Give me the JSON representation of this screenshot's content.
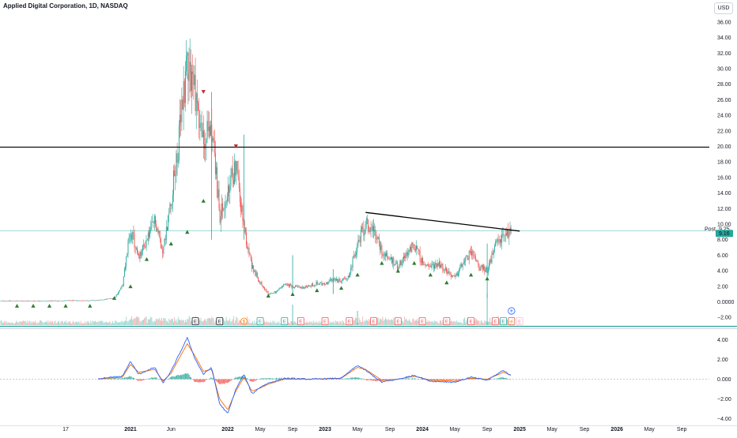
{
  "header": {
    "title": "Applied Digital Corporation, 1D, NASDAQ",
    "currency": "USD"
  },
  "price_tags": {
    "post_label": "Post",
    "post_value": "9.25",
    "last_value": "9.16"
  },
  "colors": {
    "up": "#26a69a",
    "down": "#ef5350",
    "macd": "#2962ff",
    "signal": "#ff6d00",
    "hline": "#000000",
    "lastline": "#26a69a",
    "axis_text": "#131722"
  },
  "chart_data": [
    {
      "type": "candlestick",
      "title": "",
      "ylim": [
        -3,
        37
      ],
      "y_ticks": [
        "36.00",
        "34.00",
        "32.00",
        "30.00",
        "28.00",
        "26.00",
        "24.00",
        "22.00",
        "20.00",
        "18.00",
        "16.00",
        "14.00",
        "12.00",
        "10.00",
        "8.00",
        "6.00",
        "4.00",
        "2.00",
        "0.0000",
        "−2.00"
      ],
      "horizontal_line": 19.9,
      "trend_line": {
        "start": [
          "2023-06",
          11.5
        ],
        "end": [
          "2025-01",
          9.1
        ]
      },
      "last_price": 9.16,
      "post_price": 9.25,
      "close_series": [
        [
          "2019-09",
          0.12
        ],
        [
          "2019-11",
          0.12
        ],
        [
          "2020-01",
          0.12
        ],
        [
          "2020-03",
          0.12
        ],
        [
          "2020-05",
          0.15
        ],
        [
          "2020-07",
          0.16
        ],
        [
          "2020-09",
          0.18
        ],
        [
          "2020-11",
          0.5
        ],
        [
          "2020-12",
          2.0
        ],
        [
          "2021-01",
          9.5
        ],
        [
          "2021-02",
          5.5
        ],
        [
          "2021-03",
          8.0
        ],
        [
          "2021-04",
          10.5
        ],
        [
          "2021-05",
          6.5
        ],
        [
          "2021-06",
          13.0
        ],
        [
          "2021-07",
          21.0
        ],
        [
          "2021-08",
          32.0
        ],
        [
          "2021-09",
          27.0
        ],
        [
          "2021-10",
          20.0
        ],
        [
          "2021-11",
          23.0
        ],
        [
          "2021-12",
          11.0
        ],
        [
          "2022-01",
          13.5
        ],
        [
          "2022-02",
          18.0
        ],
        [
          "2022-03",
          9.0
        ],
        [
          "2022-04",
          4.5
        ],
        [
          "2022-05",
          2.5
        ],
        [
          "2022-06",
          1.0
        ],
        [
          "2022-07",
          1.3
        ],
        [
          "2022-08",
          2.2
        ],
        [
          "2022-09",
          2.0
        ],
        [
          "2022-10",
          1.8
        ],
        [
          "2022-11",
          2.0
        ],
        [
          "2022-12",
          2.4
        ],
        [
          "2023-01",
          2.2
        ],
        [
          "2023-02",
          3.0
        ],
        [
          "2023-03",
          2.6
        ],
        [
          "2023-04",
          3.5
        ],
        [
          "2023-05",
          7.5
        ],
        [
          "2023-06",
          10.0
        ],
        [
          "2023-07",
          9.5
        ],
        [
          "2023-08",
          6.5
        ],
        [
          "2023-09",
          5.5
        ],
        [
          "2023-10",
          4.5
        ],
        [
          "2023-11",
          6.0
        ],
        [
          "2023-12",
          7.5
        ],
        [
          "2024-01",
          5.0
        ],
        [
          "2024-02",
          4.5
        ],
        [
          "2024-03",
          5.0
        ],
        [
          "2024-04",
          4.0
        ],
        [
          "2024-05",
          3.0
        ],
        [
          "2024-06",
          5.0
        ],
        [
          "2024-07",
          6.5
        ],
        [
          "2024-08",
          4.5
        ],
        [
          "2024-09",
          4.0
        ],
        [
          "2024-10",
          7.0
        ],
        [
          "2024-11",
          8.5
        ],
        [
          "2024-12",
          9.16
        ]
      ],
      "up_markers": [
        [
          "2019-11",
          -0.5
        ],
        [
          "2020-01",
          -0.5
        ],
        [
          "2020-03",
          -0.5
        ],
        [
          "2020-05",
          -0.5
        ],
        [
          "2020-08",
          -0.5
        ],
        [
          "2020-11",
          0.5
        ],
        [
          "2021-01",
          2.0
        ],
        [
          "2021-03",
          5.5
        ],
        [
          "2021-06",
          7.5
        ],
        [
          "2021-08",
          9.0
        ],
        [
          "2021-10",
          13.0
        ],
        [
          "2022-06",
          0.8
        ],
        [
          "2022-09",
          1.0
        ],
        [
          "2022-12",
          1.5
        ],
        [
          "2023-03",
          1.8
        ],
        [
          "2023-05",
          3.5
        ],
        [
          "2023-08",
          5.0
        ],
        [
          "2023-10",
          4.0
        ],
        [
          "2023-12",
          5.0
        ],
        [
          "2024-02",
          3.5
        ],
        [
          "2024-04",
          2.5
        ],
        [
          "2024-07",
          3.5
        ],
        [
          "2024-09",
          3.0
        ]
      ],
      "down_markers": [
        [
          "2021-10",
          27.0
        ],
        [
          "2022-02",
          20.0
        ]
      ],
      "events": [
        {
          "date": "2021-09",
          "label": "E",
          "style": "dark"
        },
        {
          "date": "2021-12",
          "label": "E",
          "style": "dark"
        },
        {
          "date": "2022-03",
          "label": "$",
          "style": "orange"
        },
        {
          "date": "2022-05",
          "label": "E",
          "style": "green"
        },
        {
          "date": "2022-08",
          "label": "E",
          "style": "green"
        },
        {
          "date": "2022-10",
          "label": "E",
          "style": "red"
        },
        {
          "date": "2023-01",
          "label": "E",
          "style": "red"
        },
        {
          "date": "2023-04",
          "label": "E",
          "style": "red"
        },
        {
          "date": "2023-07",
          "label": "E",
          "style": "red"
        },
        {
          "date": "2023-10",
          "label": "E",
          "style": "red"
        },
        {
          "date": "2024-01",
          "label": "E",
          "style": "red"
        },
        {
          "date": "2024-04",
          "label": "E",
          "style": "red"
        },
        {
          "date": "2024-07",
          "label": "E",
          "style": "red"
        },
        {
          "date": "2024-10",
          "label": "E",
          "style": "red"
        },
        {
          "date": "2024-11",
          "label": "E",
          "style": "green"
        },
        {
          "date": "2024-12",
          "label": "⚡",
          "style": "red"
        },
        {
          "date": "2025-01",
          "label": "E",
          "style": "pink"
        }
      ]
    },
    {
      "type": "macd",
      "ylim": [
        -4.6,
        5.0
      ],
      "y_ticks": [
        "4.00",
        "2.00",
        "0.000",
        "−2.00",
        "−4.00"
      ],
      "macd_series": [
        [
          "2020-09",
          0.05
        ],
        [
          "2020-12",
          0.3
        ],
        [
          "2021-01",
          1.8
        ],
        [
          "2021-02",
          0.5
        ],
        [
          "2021-04",
          1.2
        ],
        [
          "2021-05",
          -0.4
        ],
        [
          "2021-06",
          0.8
        ],
        [
          "2021-08",
          4.2
        ],
        [
          "2021-09",
          2.0
        ],
        [
          "2021-10",
          0.5
        ],
        [
          "2021-11",
          1.2
        ],
        [
          "2021-12",
          -2.5
        ],
        [
          "2022-01",
          -3.5
        ],
        [
          "2022-02",
          -1.0
        ],
        [
          "2022-03",
          0.5
        ],
        [
          "2022-04",
          -1.5
        ],
        [
          "2022-05",
          -0.8
        ],
        [
          "2022-06",
          -0.4
        ],
        [
          "2022-08",
          0.1
        ],
        [
          "2022-11",
          0.0
        ],
        [
          "2023-03",
          0.1
        ],
        [
          "2023-05",
          1.4
        ],
        [
          "2023-06",
          0.9
        ],
        [
          "2023-08",
          -0.3
        ],
        [
          "2023-10",
          0.0
        ],
        [
          "2023-12",
          0.4
        ],
        [
          "2024-02",
          -0.2
        ],
        [
          "2024-05",
          -0.3
        ],
        [
          "2024-07",
          0.2
        ],
        [
          "2024-09",
          -0.1
        ],
        [
          "2024-11",
          0.9
        ],
        [
          "2024-12",
          0.3
        ]
      ],
      "signal_series": [
        [
          "2020-09",
          0.04
        ],
        [
          "2020-12",
          0.2
        ],
        [
          "2021-01",
          1.5
        ],
        [
          "2021-02",
          0.7
        ],
        [
          "2021-04",
          1.0
        ],
        [
          "2021-05",
          -0.2
        ],
        [
          "2021-06",
          0.6
        ],
        [
          "2021-08",
          3.6
        ],
        [
          "2021-09",
          2.3
        ],
        [
          "2021-10",
          0.8
        ],
        [
          "2021-11",
          1.0
        ],
        [
          "2021-12",
          -2.0
        ],
        [
          "2022-01",
          -3.1
        ],
        [
          "2022-02",
          -1.2
        ],
        [
          "2022-03",
          0.2
        ],
        [
          "2022-04",
          -1.2
        ],
        [
          "2022-05",
          -0.9
        ],
        [
          "2022-06",
          -0.5
        ],
        [
          "2022-08",
          0.0
        ],
        [
          "2022-11",
          0.0
        ],
        [
          "2023-03",
          0.1
        ],
        [
          "2023-05",
          1.2
        ],
        [
          "2023-06",
          1.0
        ],
        [
          "2023-08",
          -0.1
        ],
        [
          "2023-10",
          0.0
        ],
        [
          "2023-12",
          0.3
        ],
        [
          "2024-02",
          -0.1
        ],
        [
          "2024-05",
          -0.2
        ],
        [
          "2024-07",
          0.1
        ],
        [
          "2024-09",
          0.0
        ],
        [
          "2024-11",
          0.7
        ],
        [
          "2024-12",
          0.4
        ]
      ]
    }
  ],
  "x_axis": {
    "ticks": [
      {
        "date": "2019-01",
        "label": "2019"
      },
      {
        "date": "2020-05",
        "label": "17"
      },
      {
        "date": "2021-01",
        "label": "2021"
      },
      {
        "date": "2021-06",
        "label": "Jun"
      },
      {
        "date": "2022-01",
        "label": "2022"
      },
      {
        "date": "2022-05",
        "label": "May"
      },
      {
        "date": "2022-09",
        "label": "Sep"
      },
      {
        "date": "2023-01",
        "label": "2023"
      },
      {
        "date": "2023-05",
        "label": "May"
      },
      {
        "date": "2023-09",
        "label": "Sep"
      },
      {
        "date": "2024-01",
        "label": "2024"
      },
      {
        "date": "2024-05",
        "label": "May"
      },
      {
        "date": "2024-09",
        "label": "Sep"
      },
      {
        "date": "2025-01",
        "label": "2025"
      },
      {
        "date": "2025-05",
        "label": "May"
      },
      {
        "date": "2025-09",
        "label": "Sep"
      },
      {
        "date": "2026-01",
        "label": "2026"
      },
      {
        "date": "2026-05",
        "label": "May"
      },
      {
        "date": "2026-09",
        "label": "Sep"
      }
    ]
  }
}
